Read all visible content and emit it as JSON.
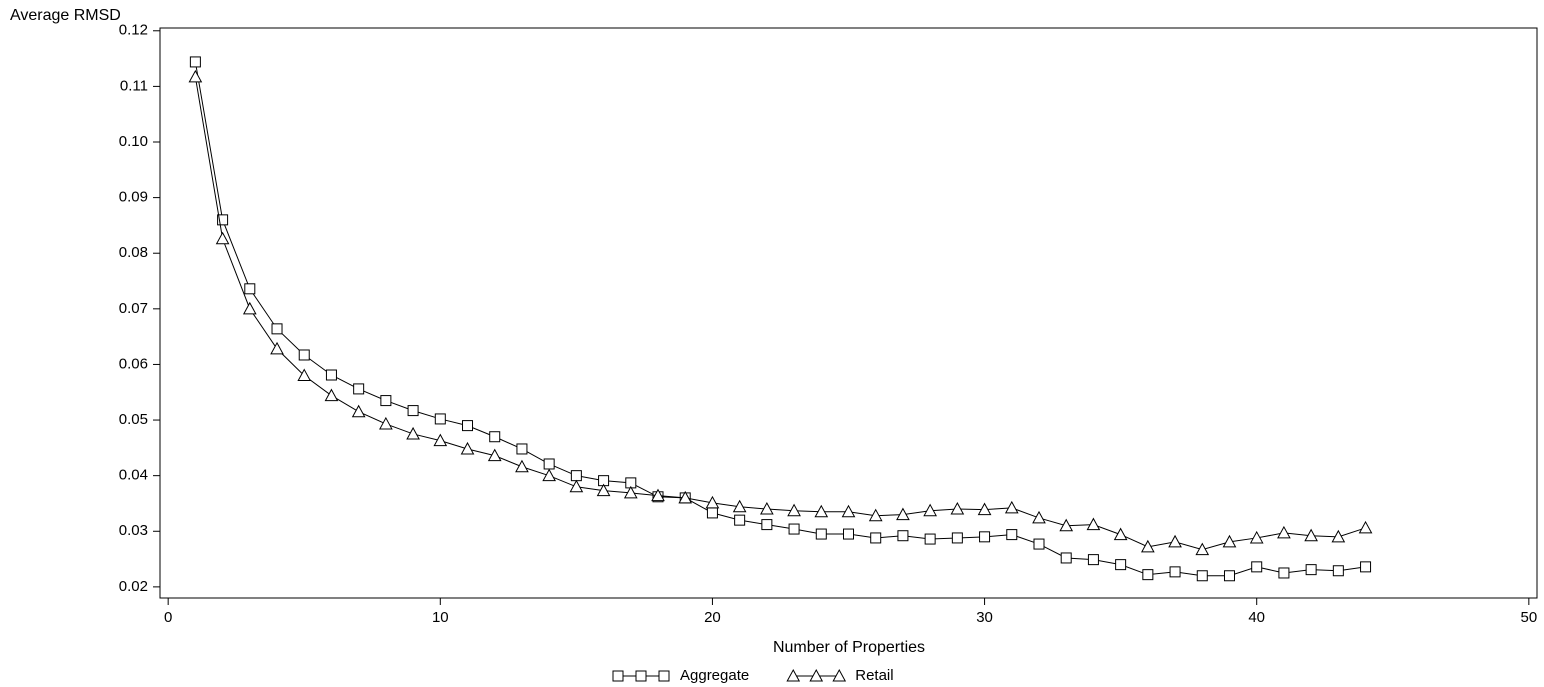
{
  "chart_data": {
    "type": "line",
    "ylabel": "Average RMSD",
    "xlabel": "Number of Properties",
    "x": [
      1,
      2,
      3,
      4,
      5,
      6,
      7,
      8,
      9,
      10,
      11,
      12,
      13,
      14,
      15,
      16,
      17,
      18,
      19,
      20,
      21,
      22,
      23,
      24,
      25,
      26,
      27,
      28,
      29,
      30,
      31,
      32,
      33,
      34,
      35,
      36,
      37,
      38,
      39,
      40,
      41,
      42,
      43,
      44
    ],
    "series": [
      {
        "name": "Aggregate",
        "color": "#000000",
        "marker": "square",
        "values": [
          0.1144,
          0.086,
          0.0736,
          0.0664,
          0.0617,
          0.0581,
          0.0556,
          0.0535,
          0.0517,
          0.0502,
          0.049,
          0.047,
          0.0448,
          0.0421,
          0.04,
          0.0391,
          0.0387,
          0.0362,
          0.036,
          0.0333,
          0.032,
          0.0312,
          0.0304,
          0.0295,
          0.0295,
          0.0288,
          0.0292,
          0.0286,
          0.0288,
          0.029,
          0.0294,
          0.0277,
          0.0252,
          0.0249,
          0.024,
          0.0222,
          0.0227,
          0.022,
          0.022,
          0.0236,
          0.0225,
          0.0231,
          0.0229,
          0.0236
        ]
      },
      {
        "name": "Retail",
        "color": "#000000",
        "marker": "triangle",
        "values": [
          0.1117,
          0.0826,
          0.07,
          0.0628,
          0.058,
          0.0544,
          0.0515,
          0.0493,
          0.0475,
          0.0463,
          0.0448,
          0.0436,
          0.0416,
          0.04,
          0.038,
          0.0373,
          0.0369,
          0.0364,
          0.036,
          0.0351,
          0.0344,
          0.034,
          0.0337,
          0.0335,
          0.0335,
          0.0328,
          0.033,
          0.0337,
          0.034,
          0.0339,
          0.0342,
          0.0324,
          0.031,
          0.0312,
          0.0294,
          0.0272,
          0.0281,
          0.0267,
          0.0281,
          0.0288,
          0.0297,
          0.0292,
          0.029,
          0.0306
        ]
      }
    ],
    "xlim": [
      -0.3,
      50.3
    ],
    "xticks": [
      0,
      10,
      20,
      30,
      40,
      50
    ],
    "ylim": [
      0.018,
      0.1205
    ],
    "yticks": [
      0.02,
      0.03,
      0.04,
      0.05,
      0.06,
      0.07,
      0.08,
      0.09,
      {
        "value": 0.1,
        "label": "0.10"
      },
      0.11,
      0.12
    ],
    "legend": "bottom"
  }
}
